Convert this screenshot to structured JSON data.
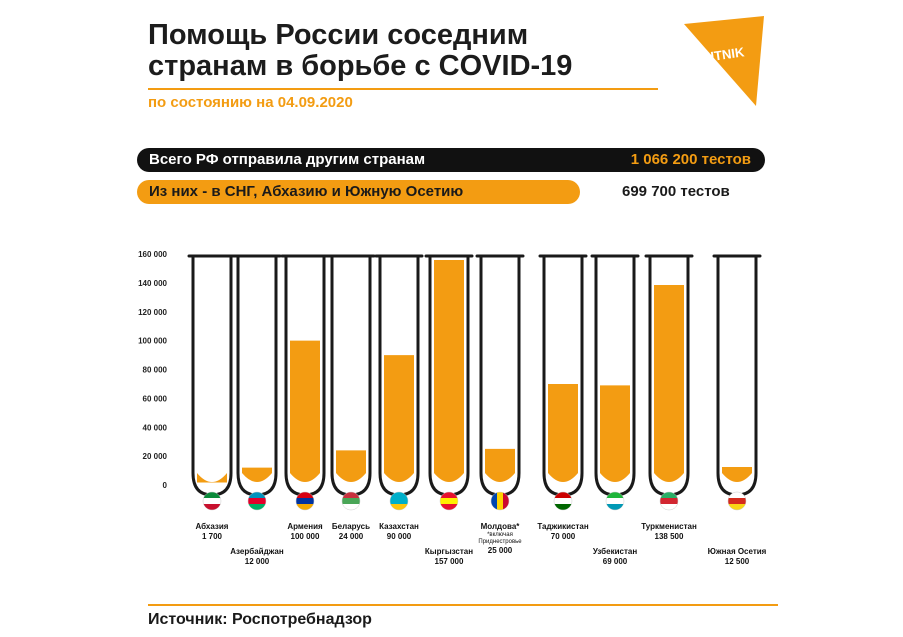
{
  "header": {
    "title_line1": "Помощь России соседним",
    "title_line2": "странам в борьбе с COVID-19",
    "date": "по состоянию на 04.09.2020",
    "logo_text": "SPUTNIK"
  },
  "summary": {
    "total_label": "Всего РФ отправила другим странам",
    "total_value": "1 066 200 тестов",
    "cis_label": "Из них - в СНГ, Абхазию и Южную Осетию",
    "cis_value": "699 700 тестов"
  },
  "footer": {
    "source": "Источник: Роспотребнадзор"
  },
  "colors": {
    "accent": "#f39c12",
    "dark": "#111111"
  },
  "chart_data": {
    "type": "bar",
    "ylim": [
      0,
      160000
    ],
    "y_ticks": [
      "0",
      "20 000",
      "40 000",
      "60 000",
      "80 000",
      "100 000",
      "120 000",
      "140 000",
      "160 000"
    ],
    "categories": [
      "Абхазия",
      "Азербайджан",
      "Армения",
      "Беларусь",
      "Казахстан",
      "Кыргызстан",
      "Молдова*",
      "Таджикистан",
      "Узбекистан",
      "Туркменистан",
      "Южная Осетия"
    ],
    "value_labels": [
      "1 700",
      "12 000",
      "100 000",
      "24 000",
      "90 000",
      "157 000",
      "25 000",
      "70 000",
      "69 000",
      "138 500",
      "12 500"
    ],
    "values": [
      1700,
      12000,
      100000,
      24000,
      90000,
      157000,
      25000,
      70000,
      69000,
      138500,
      12500
    ],
    "notes": {
      "Молдова*": "*включая Приднестровье"
    },
    "flag_icons": [
      "flag-abkhazia-icon",
      "flag-azerbaijan-icon",
      "flag-armenia-icon",
      "flag-belarus-icon",
      "flag-kazakhstan-icon",
      "flag-kyrgyzstan-icon",
      "flag-moldova-icon",
      "flag-tajikistan-icon",
      "flag-uzbekistan-icon",
      "flag-turkmenistan-icon",
      "flag-south-ossetia-icon"
    ]
  }
}
